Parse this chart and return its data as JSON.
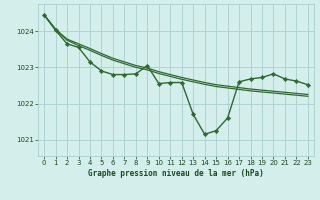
{
  "title": "Graphe pression niveau de la mer (hPa)",
  "bg_color": "#d4eeeb",
  "grid_color": "#a8d0cc",
  "line_color": "#2d6a2d",
  "text_color": "#1a4a1a",
  "xlim": [
    -0.5,
    23.5
  ],
  "ylim": [
    1020.55,
    1024.75
  ],
  "yticks": [
    1021,
    1022,
    1023,
    1024
  ],
  "xticks": [
    0,
    1,
    2,
    3,
    4,
    5,
    6,
    7,
    8,
    9,
    10,
    11,
    12,
    13,
    14,
    15,
    16,
    17,
    18,
    19,
    20,
    21,
    22,
    23
  ],
  "envelope1": {
    "x": [
      0,
      1,
      2,
      3,
      4,
      5,
      6,
      7,
      8,
      9,
      10,
      11,
      12,
      13,
      14,
      15,
      16,
      17,
      18,
      19,
      20,
      21,
      22,
      23
    ],
    "y": [
      1024.45,
      1024.05,
      1023.78,
      1023.65,
      1023.52,
      1023.38,
      1023.25,
      1023.15,
      1023.05,
      1022.98,
      1022.88,
      1022.8,
      1022.72,
      1022.65,
      1022.58,
      1022.52,
      1022.48,
      1022.44,
      1022.4,
      1022.37,
      1022.34,
      1022.31,
      1022.28,
      1022.25
    ]
  },
  "envelope2": {
    "x": [
      0,
      1,
      2,
      3,
      4,
      5,
      6,
      7,
      8,
      9,
      10,
      11,
      12,
      13,
      14,
      15,
      16,
      17,
      18,
      19,
      20,
      21,
      22,
      23
    ],
    "y": [
      1024.45,
      1024.05,
      1023.75,
      1023.6,
      1023.47,
      1023.33,
      1023.2,
      1023.1,
      1023.0,
      1022.93,
      1022.83,
      1022.75,
      1022.67,
      1022.6,
      1022.53,
      1022.47,
      1022.43,
      1022.39,
      1022.35,
      1022.32,
      1022.29,
      1022.26,
      1022.23,
      1022.2
    ]
  },
  "main_series": {
    "x": [
      0,
      1,
      2,
      3,
      4,
      5,
      6,
      7,
      8,
      9,
      10,
      11,
      12,
      13,
      14,
      15,
      16,
      17,
      18,
      19,
      20,
      21,
      22,
      23
    ],
    "y": [
      1024.45,
      1024.02,
      1023.65,
      1023.55,
      1023.15,
      1022.9,
      1022.8,
      1022.8,
      1022.82,
      1023.05,
      1022.55,
      1022.58,
      1022.58,
      1021.7,
      1021.15,
      1021.25,
      1021.6,
      1022.6,
      1022.68,
      1022.72,
      1022.82,
      1022.68,
      1022.62,
      1022.52
    ]
  }
}
